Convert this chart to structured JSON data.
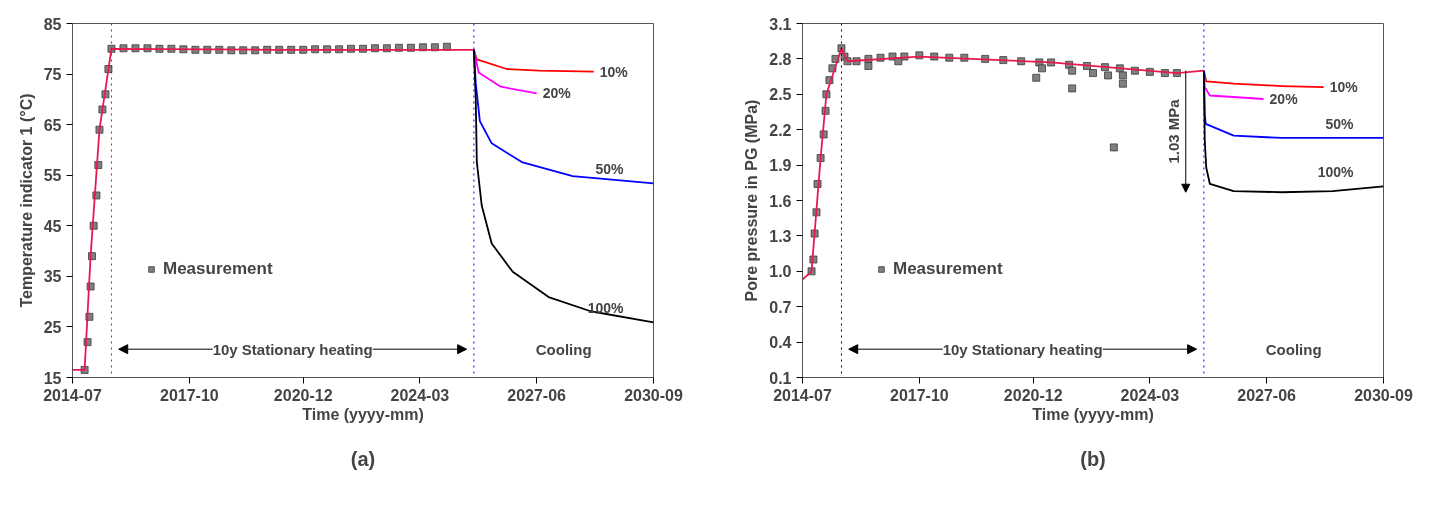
{
  "chart_data": [
    {
      "type": "line",
      "title": "(a)",
      "xlabel": "Time (yyyy-mm)",
      "ylabel": "Temperature indicator 1 (°C)",
      "xlim": [
        "2014-07",
        "2030-09"
      ],
      "xticks": [
        "2014-07",
        "2017-10",
        "2020-12",
        "2024-03",
        "2027-06",
        "2030-09"
      ],
      "ylim": [
        15,
        85
      ],
      "yticks": [
        15,
        25,
        35,
        45,
        55,
        65,
        75,
        85
      ],
      "legend": "left",
      "grid": false,
      "series": [
        {
          "name": "Measurement",
          "type": "scatter",
          "marker": "square",
          "color": "#808080",
          "x": [
            "2014-11",
            "2014-12",
            "2014-12-20",
            "2015-01",
            "2015-01-15",
            "2015-02",
            "2015-03",
            "2015-03-20",
            "2015-04",
            "2015-05",
            "2015-06",
            "2015-07",
            "2015-08",
            "2015-12",
            "2016-04",
            "2016-08",
            "2016-12",
            "2017-04",
            "2017-08",
            "2017-12",
            "2018-04",
            "2018-08",
            "2018-12",
            "2019-04",
            "2019-08",
            "2019-12",
            "2020-04",
            "2020-08",
            "2020-12",
            "2021-04",
            "2021-08",
            "2021-12",
            "2022-04",
            "2022-08",
            "2022-12",
            "2023-04",
            "2023-08",
            "2023-12",
            "2024-04",
            "2024-08",
            "2024-12"
          ],
          "values": [
            16.5,
            22,
            27,
            33,
            39,
            45,
            51,
            57,
            64,
            68,
            71,
            76,
            80,
            80.1,
            80.1,
            80.1,
            80.0,
            80.0,
            79.9,
            79.8,
            79.8,
            79.8,
            79.7,
            79.7,
            79.7,
            79.8,
            79.8,
            79.8,
            79.8,
            79.9,
            79.9,
            79.9,
            80.0,
            80.0,
            80.1,
            80.1,
            80.2,
            80.2,
            80.3,
            80.3,
            80.4
          ]
        },
        {
          "color": "#e8194f",
          "x": [
            "2014-07",
            "2014-11",
            "2015-01",
            "2015-04",
            "2015-08",
            "2020-01",
            "2025-09"
          ],
          "values": [
            16.5,
            16.5,
            39,
            64,
            80,
            79.8,
            79.8
          ]
        },
        {
          "name": "10%",
          "color": "#ff0000",
          "x": [
            "2025-09",
            "2025-10",
            "2026-08",
            "2027-07",
            "2029-01"
          ],
          "values": [
            79.8,
            77.9,
            76.0,
            75.7,
            75.5
          ]
        },
        {
          "name": "20%",
          "color": "#ff00ff",
          "x": [
            "2025-09",
            "2025-10-20",
            "2026-06",
            "2027-06"
          ],
          "values": [
            79.8,
            75.3,
            72.5,
            71.2
          ]
        },
        {
          "name": "50%",
          "color": "#0000ff",
          "x": [
            "2025-09",
            "2025-09-20",
            "2025-11",
            "2026-03",
            "2027-01",
            "2028-06",
            "2030-09"
          ],
          "values": [
            79.8,
            73.2,
            65.7,
            61.3,
            57.6,
            54.8,
            53.4
          ]
        },
        {
          "name": "100%",
          "color": "#000000",
          "x": [
            "2025-09",
            "2025-09-20",
            "2025-10",
            "2025-11-20",
            "2026-03",
            "2026-10",
            "2027-10",
            "2028-12",
            "2030-09"
          ],
          "values": [
            79.8,
            70.1,
            57.6,
            49.0,
            41.5,
            35.9,
            30.9,
            28.1,
            25.9
          ]
        }
      ],
      "ref_lines": [
        {
          "axis": "x",
          "value": "2015-08",
          "color": "#ff0000",
          "line_style": "dotted"
        },
        {
          "axis": "x",
          "value": "2025-09",
          "color": "#0000ff",
          "line_style": "dotted"
        }
      ],
      "annotations": [
        "10y Stationary heating",
        "Cooling"
      ]
    },
    {
      "type": "line",
      "title": "(b)",
      "xlabel": "Time (yyyy-mm)",
      "ylabel": "Pore pressure in PG (MPa)",
      "xlim": [
        "2014-07",
        "2030-09"
      ],
      "xticks": [
        "2014-07",
        "2017-10",
        "2020-12",
        "2024-03",
        "2027-06",
        "2030-09"
      ],
      "ylim": [
        0.1,
        3.1
      ],
      "yticks": [
        0.1,
        0.4,
        0.7,
        {
          "value": 1,
          "label": "1.0"
        },
        1.3,
        1.6,
        1.9,
        2.2,
        2.5,
        2.8,
        3.1
      ],
      "legend": "left",
      "grid": false,
      "series": [
        {
          "name": "Measurement",
          "type": "scatter",
          "marker": "square",
          "color": "#808080",
          "x": [
            "2014-10",
            "2014-10-20",
            "2014-11",
            "2014-11-20",
            "2014-12",
            "2015-01",
            "2015-02",
            "2015-02-20",
            "2015-03",
            "2015-04",
            "2015-05",
            "2015-06",
            "2015-08",
            "2015-09",
            "2015-10",
            "2016-01",
            "2016-05",
            "2016-09",
            "2017-01",
            "2017-05",
            "2017-10",
            "2018-03",
            "2018-08",
            "2019-01",
            "2019-08",
            "2020-02",
            "2020-08",
            "2021-02",
            "2021-06",
            "2021-12",
            "2022-06",
            "2022-12",
            "2023-05",
            "2023-10",
            "2024-03",
            "2024-08",
            "2024-12",
            "2016-05",
            "2017-03",
            "2021-01",
            "2021-03",
            "2022-01",
            "2022-01",
            "2022-08",
            "2023-01",
            "2023-03",
            "2023-06",
            "2023-06"
          ],
          "values": [
            1.0,
            1.1,
            1.32,
            1.5,
            1.74,
            1.96,
            2.16,
            2.36,
            2.5,
            2.62,
            2.72,
            2.8,
            2.89,
            2.82,
            2.78,
            2.78,
            2.8,
            2.81,
            2.82,
            2.82,
            2.83,
            2.82,
            2.81,
            2.81,
            2.8,
            2.79,
            2.78,
            2.77,
            2.77,
            2.75,
            2.74,
            2.73,
            2.72,
            2.7,
            2.69,
            2.68,
            2.68,
            2.74,
            2.78,
            2.64,
            2.72,
            2.55,
            2.7,
            2.68,
            2.66,
            2.05,
            2.59,
            2.66
          ]
        },
        {
          "color": "#e8194f",
          "x": [
            "2014-07",
            "2014-10",
            "2015-01",
            "2015-03",
            "2015-08",
            "2015-10",
            "2017-10",
            "2021-06",
            "2024-12",
            "2025-09"
          ],
          "values": [
            0.93,
            1.0,
            1.96,
            2.5,
            2.89,
            2.78,
            2.82,
            2.77,
            2.68,
            2.7
          ]
        },
        {
          "name": "10%",
          "color": "#ff0000",
          "x": [
            "2025-09",
            "2025-09-25",
            "2026-07",
            "2027-11",
            "2029-01"
          ],
          "values": [
            2.7,
            2.61,
            2.59,
            2.57,
            2.56
          ]
        },
        {
          "name": "20%",
          "color": "#ff00ff",
          "x": [
            "2025-09",
            "2025-09-10",
            "2025-11",
            "2027-05"
          ],
          "values": [
            2.7,
            2.56,
            2.49,
            2.46
          ]
        },
        {
          "name": "50%",
          "color": "#0000ff",
          "x": [
            "2025-09",
            "2025-09-10",
            "2025-09-20",
            "2026-07",
            "2027-11",
            "2030-09"
          ],
          "values": [
            2.7,
            2.33,
            2.25,
            2.15,
            2.13,
            2.13
          ]
        },
        {
          "name": "100%",
          "color": "#000000",
          "x": [
            "2025-09",
            "2025-09-10",
            "2025-09-25",
            "2025-11",
            "2026-07",
            "2027-11",
            "2029-04",
            "2030-09"
          ],
          "values": [
            2.7,
            2.11,
            1.88,
            1.74,
            1.68,
            1.67,
            1.68,
            1.72
          ]
        }
      ],
      "ref_lines": [
        {
          "axis": "x",
          "value": "2015-08",
          "color": "#000000",
          "line_style": "dotted"
        },
        {
          "axis": "x",
          "value": "2025-09",
          "color": "#0000ff",
          "line_style": "dotted"
        }
      ],
      "annotations": [
        "10y Stationary heating",
        "Cooling",
        "1.03 MPa"
      ]
    }
  ]
}
